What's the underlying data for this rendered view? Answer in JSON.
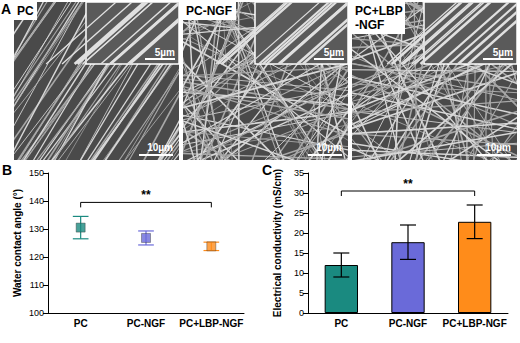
{
  "panel_a": {
    "panel_label": "A",
    "images": [
      {
        "label": [
          "PC"
        ],
        "inset_scale": "5µm",
        "scale": "10µm"
      },
      {
        "label": [
          "PC-NGF"
        ],
        "inset_scale": "5µm",
        "scale": "10µm"
      },
      {
        "label": [
          "PC+LBP",
          "-NGF"
        ],
        "inset_scale": "5µm",
        "scale": "10µm"
      }
    ]
  },
  "chart_data": [
    {
      "panel_label": "B",
      "type": "scatter",
      "y_label": "Water contact angle (°)",
      "categories": [
        "PC",
        "PC-NGF",
        "PC+LBP-NGF"
      ],
      "values": [
        130.5,
        126.8,
        123.8
      ],
      "errors": [
        4,
        2.5,
        1.5
      ],
      "colors": [
        "#1a8a80",
        "#6a6ad9",
        "#ff8c1a"
      ],
      "marker": "square",
      "ylim": [
        100,
        150
      ],
      "yticks": [
        100,
        110,
        120,
        130,
        140,
        150
      ],
      "annotation": {
        "text": "**",
        "from": "PC",
        "to": "PC+LBP-NGF"
      }
    },
    {
      "panel_label": "C",
      "type": "bar",
      "y_label": "Electrical conductivity (mS/cm)",
      "categories": [
        "PC",
        "PC-NGF",
        "PC+LBP-NGF"
      ],
      "values": [
        12,
        17.7,
        22.8
      ],
      "errors": [
        3,
        4.3,
        4.2
      ],
      "colors": [
        "#1a8a80",
        "#6a6ad9",
        "#ff8c1a"
      ],
      "ylim": [
        0,
        35
      ],
      "yticks": [
        0,
        5,
        10,
        15,
        20,
        25,
        30,
        35
      ],
      "annotation": {
        "text": "**",
        "from": "PC",
        "to": "PC+LBP-NGF"
      }
    }
  ]
}
